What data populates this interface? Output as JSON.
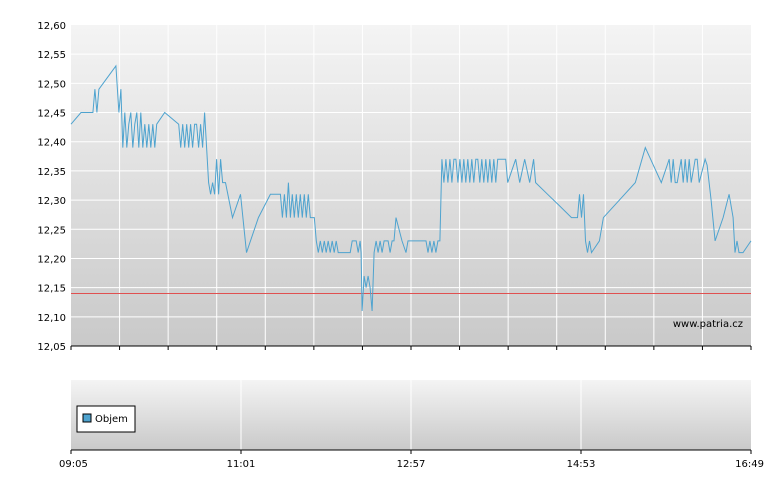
{
  "watermark": "www.patria.cz",
  "legend_label": "Objem",
  "colors": {
    "price_line": "#4ea3cf",
    "reference_line": "#e05050",
    "plot_bg_top": "#f4f4f4",
    "plot_bg_bottom": "#c9c9c9",
    "grid": "#ffffff",
    "legend_swatch": "#4ea3cf"
  },
  "chart_data": [
    {
      "type": "line",
      "ylim": [
        12.05,
        12.6
      ],
      "y_ticks": [
        "12,05",
        "12,10",
        "12,15",
        "12,20",
        "12,25",
        "12,30",
        "12,35",
        "12,40",
        "12,45",
        "12,50",
        "12,55",
        "12,60"
      ],
      "grid": true,
      "reference_line": 12.14,
      "series": [
        {
          "points": [
            [
              0,
              12.43
            ],
            [
              10,
              12.45
            ],
            [
              22,
              12.45
            ],
            [
              24,
              12.49
            ],
            [
              26,
              12.45
            ],
            [
              28,
              12.49
            ],
            [
              45,
              12.53
            ],
            [
              48,
              12.45
            ],
            [
              50,
              12.49
            ],
            [
              52,
              12.39
            ],
            [
              54,
              12.45
            ],
            [
              56,
              12.39
            ],
            [
              58,
              12.43
            ],
            [
              60,
              12.45
            ],
            [
              62,
              12.39
            ],
            [
              64,
              12.43
            ],
            [
              66,
              12.45
            ],
            [
              68,
              12.39
            ],
            [
              70,
              12.45
            ],
            [
              72,
              12.39
            ],
            [
              74,
              12.43
            ],
            [
              76,
              12.39
            ],
            [
              78,
              12.43
            ],
            [
              80,
              12.39
            ],
            [
              82,
              12.43
            ],
            [
              84,
              12.39
            ],
            [
              86,
              12.43
            ],
            [
              94,
              12.45
            ],
            [
              108,
              12.43
            ],
            [
              110,
              12.39
            ],
            [
              112,
              12.43
            ],
            [
              114,
              12.39
            ],
            [
              116,
              12.43
            ],
            [
              118,
              12.39
            ],
            [
              120,
              12.43
            ],
            [
              122,
              12.39
            ],
            [
              124,
              12.43
            ],
            [
              126,
              12.43
            ],
            [
              128,
              12.39
            ],
            [
              130,
              12.43
            ],
            [
              132,
              12.39
            ],
            [
              134,
              12.45
            ],
            [
              136,
              12.39
            ],
            [
              138,
              12.33
            ],
            [
              140,
              12.31
            ],
            [
              142,
              12.33
            ],
            [
              144,
              12.31
            ],
            [
              146,
              12.37
            ],
            [
              148,
              12.31
            ],
            [
              150,
              12.37
            ],
            [
              152,
              12.33
            ],
            [
              155,
              12.33
            ],
            [
              162,
              12.27
            ],
            [
              170,
              12.31
            ],
            [
              176,
              12.21
            ],
            [
              188,
              12.27
            ],
            [
              200,
              12.31
            ],
            [
              210,
              12.31
            ],
            [
              212,
              12.27
            ],
            [
              214,
              12.31
            ],
            [
              216,
              12.27
            ],
            [
              218,
              12.33
            ],
            [
              220,
              12.27
            ],
            [
              222,
              12.31
            ],
            [
              224,
              12.27
            ],
            [
              226,
              12.31
            ],
            [
              228,
              12.27
            ],
            [
              230,
              12.31
            ],
            [
              232,
              12.27
            ],
            [
              234,
              12.31
            ],
            [
              236,
              12.27
            ],
            [
              238,
              12.31
            ],
            [
              240,
              12.27
            ],
            [
              244,
              12.27
            ],
            [
              246,
              12.23
            ],
            [
              248,
              12.21
            ],
            [
              250,
              12.23
            ],
            [
              252,
              12.21
            ],
            [
              254,
              12.23
            ],
            [
              256,
              12.21
            ],
            [
              258,
              12.23
            ],
            [
              260,
              12.21
            ],
            [
              262,
              12.23
            ],
            [
              264,
              12.21
            ],
            [
              266,
              12.23
            ],
            [
              268,
              12.21
            ],
            [
              270,
              12.21
            ],
            [
              280,
              12.21
            ],
            [
              282,
              12.23
            ],
            [
              286,
              12.23
            ],
            [
              288,
              12.21
            ],
            [
              290,
              12.23
            ],
            [
              291,
              12.21
            ],
            [
              292,
              12.11
            ],
            [
              294,
              12.17
            ],
            [
              296,
              12.15
            ],
            [
              298,
              12.17
            ],
            [
              300,
              12.15
            ],
            [
              302,
              12.11
            ],
            [
              304,
              12.21
            ],
            [
              306,
              12.23
            ],
            [
              308,
              12.21
            ],
            [
              310,
              12.23
            ],
            [
              312,
              12.21
            ],
            [
              314,
              12.23
            ],
            [
              318,
              12.23
            ],
            [
              320,
              12.21
            ],
            [
              322,
              12.23
            ],
            [
              324,
              12.23
            ],
            [
              326,
              12.27
            ],
            [
              332,
              12.23
            ],
            [
              336,
              12.21
            ],
            [
              338,
              12.23
            ],
            [
              346,
              12.23
            ],
            [
              356,
              12.23
            ],
            [
              358,
              12.21
            ],
            [
              360,
              12.23
            ],
            [
              362,
              12.21
            ],
            [
              364,
              12.23
            ],
            [
              366,
              12.21
            ],
            [
              368,
              12.23
            ],
            [
              370,
              12.23
            ],
            [
              372,
              12.37
            ],
            [
              374,
              12.33
            ],
            [
              376,
              12.37
            ],
            [
              378,
              12.33
            ],
            [
              380,
              12.37
            ],
            [
              382,
              12.33
            ],
            [
              384,
              12.37
            ],
            [
              386,
              12.37
            ],
            [
              388,
              12.33
            ],
            [
              390,
              12.37
            ],
            [
              392,
              12.33
            ],
            [
              394,
              12.37
            ],
            [
              396,
              12.33
            ],
            [
              398,
              12.37
            ],
            [
              400,
              12.33
            ],
            [
              402,
              12.37
            ],
            [
              404,
              12.33
            ],
            [
              406,
              12.37
            ],
            [
              408,
              12.37
            ],
            [
              410,
              12.33
            ],
            [
              412,
              12.37
            ],
            [
              414,
              12.33
            ],
            [
              416,
              12.37
            ],
            [
              418,
              12.33
            ],
            [
              420,
              12.37
            ],
            [
              422,
              12.33
            ],
            [
              424,
              12.37
            ],
            [
              426,
              12.33
            ],
            [
              428,
              12.37
            ],
            [
              430,
              12.37
            ],
            [
              436,
              12.37
            ],
            [
              438,
              12.33
            ],
            [
              446,
              12.37
            ],
            [
              450,
              12.33
            ],
            [
              455,
              12.37
            ],
            [
              460,
              12.33
            ],
            [
              464,
              12.37
            ],
            [
              466,
              12.33
            ],
            [
              478,
              12.31
            ],
            [
              490,
              12.29
            ],
            [
              502,
              12.27
            ],
            [
              508,
              12.27
            ],
            [
              510,
              12.31
            ],
            [
              512,
              12.27
            ],
            [
              514,
              12.31
            ],
            [
              516,
              12.23
            ],
            [
              518,
              12.21
            ],
            [
              520,
              12.23
            ],
            [
              522,
              12.21
            ],
            [
              530,
              12.23
            ],
            [
              534,
              12.27
            ],
            [
              550,
              12.3
            ],
            [
              566,
              12.33
            ],
            [
              576,
              12.39
            ],
            [
              584,
              12.36
            ],
            [
              592,
              12.33
            ],
            [
              600,
              12.37
            ],
            [
              602,
              12.33
            ],
            [
              604,
              12.37
            ],
            [
              606,
              12.33
            ],
            [
              608,
              12.33
            ],
            [
              612,
              12.37
            ],
            [
              614,
              12.33
            ],
            [
              616,
              12.37
            ],
            [
              618,
              12.33
            ],
            [
              620,
              12.37
            ],
            [
              622,
              12.33
            ],
            [
              626,
              12.37
            ],
            [
              628,
              12.37
            ],
            [
              630,
              12.33
            ],
            [
              636,
              12.37
            ],
            [
              638,
              12.36
            ],
            [
              642,
              12.3
            ],
            [
              646,
              12.23
            ],
            [
              654,
              12.27
            ],
            [
              660,
              12.31
            ],
            [
              664,
              12.27
            ],
            [
              666,
              12.21
            ],
            [
              668,
              12.23
            ],
            [
              670,
              12.21
            ],
            [
              674,
              12.21
            ],
            [
              682,
              12.23
            ]
          ]
        }
      ]
    },
    {
      "type": "bar",
      "legend": [
        "Objem"
      ],
      "x_ticks": [
        "09:05",
        "11:01",
        "12:57",
        "14:53",
        "16:49"
      ],
      "series": [
        {
          "name": "Objem",
          "values": []
        }
      ]
    }
  ]
}
